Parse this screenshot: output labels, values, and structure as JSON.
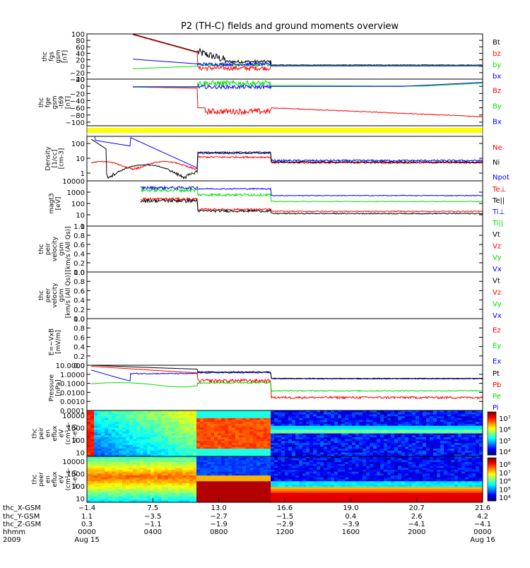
{
  "title": "P2 (TH-C) fields and ground moments overview",
  "colors": {
    "black": "#000000",
    "red": "#ff0000",
    "green": "#00dd00",
    "blue": "#0000ff",
    "yellow": "#ffff00"
  },
  "chart_data": [
    {
      "type": "line",
      "panel": "fgs",
      "ylabel": [
        "thc",
        "fgs",
        "gsm",
        "[nT]"
      ],
      "yticks": [
        "100",
        "80",
        "60",
        "40",
        "20",
        "0",
        "−20",
        "−40"
      ],
      "ylim": [
        -40,
        100
      ],
      "legend": [
        {
          "name": "Bt",
          "color": "black"
        },
        {
          "name": "bz",
          "color": "red"
        },
        {
          "name": "by",
          "color": "green"
        },
        {
          "name": "bx",
          "color": "blue"
        }
      ]
    },
    {
      "type": "line",
      "panel": "fge",
      "ylabel": [
        "thc",
        "fge",
        "gsm",
        "-t69",
        "[nT]"
      ],
      "yticks": [
        "20",
        "0",
        "−20",
        "−40",
        "−60",
        "−80",
        "−100"
      ],
      "ylim": [
        -110,
        20
      ],
      "legend": [
        {
          "name": "Bz",
          "color": "red"
        },
        {
          "name": "By",
          "color": "green"
        },
        {
          "name": "Bx",
          "color": "blue"
        }
      ]
    },
    {
      "type": "line",
      "panel": "density",
      "ylabel": [
        "Density",
        "[1/cc]",
        "[cm-3]"
      ],
      "yticks": [
        "100",
        "10",
        "1"
      ],
      "ylim": [
        0.3,
        300
      ],
      "scale": "log",
      "legend": [
        {
          "name": "Ne",
          "color": "red"
        },
        {
          "name": "Ni",
          "color": "black"
        },
        {
          "name": "Npot",
          "color": "blue"
        }
      ]
    },
    {
      "type": "line",
      "panel": "temperature",
      "ylabel": [
        "magt3",
        "[eV]"
      ],
      "yticks": [
        "10000",
        "1000",
        "100",
        "10",
        "1"
      ],
      "ylim": [
        1,
        10000
      ],
      "scale": "log",
      "legend": [
        {
          "name": "Te⊥",
          "color": "red"
        },
        {
          "name": "Te||",
          "color": "black"
        },
        {
          "name": "Ti⊥",
          "color": "blue"
        },
        {
          "name": "Ti||",
          "color": "green"
        }
      ]
    },
    {
      "type": "line",
      "panel": "peir_velocity",
      "ylabel": [
        "thc",
        "peir",
        "velocity",
        "gsm",
        "[km/s (All Qs)]"
      ],
      "yticks": [
        "1.0",
        "0.8",
        "0.6",
        "0.4",
        "0.2",
        "0.0"
      ],
      "ylim": [
        0,
        1
      ],
      "legend": [
        {
          "name": "Vt",
          "color": "black"
        },
        {
          "name": "Vz",
          "color": "red"
        },
        {
          "name": "Vy",
          "color": "green"
        },
        {
          "name": "Vx",
          "color": "blue"
        }
      ]
    },
    {
      "type": "line",
      "panel": "peer_velocity",
      "ylabel": [
        "thc",
        "peer",
        "velocity",
        "gsm",
        "[km/s (All Qs)]"
      ],
      "yticks": [
        "1.0",
        "0.8",
        "0.6",
        "0.4",
        "0.2",
        "0.0"
      ],
      "ylim": [
        0,
        1
      ],
      "legend": [
        {
          "name": "Vt",
          "color": "black"
        },
        {
          "name": "Vz",
          "color": "red"
        },
        {
          "name": "Vy",
          "color": "green"
        },
        {
          "name": "Vx",
          "color": "blue"
        }
      ]
    },
    {
      "type": "line",
      "panel": "efield",
      "ylabel": [
        "E=−VxB",
        "[mV/m]"
      ],
      "yticks": [
        "1.0",
        "0.8",
        "0.6",
        "0.4",
        "0.2",
        "0.0"
      ],
      "ylim": [
        0,
        1
      ],
      "legend": [
        {
          "name": "Ez",
          "color": "red"
        },
        {
          "name": "Ey",
          "color": "green"
        },
        {
          "name": "Ex",
          "color": "blue"
        }
      ]
    },
    {
      "type": "line",
      "panel": "pressure",
      "ylabel": [
        "Pressure",
        "[nPa]"
      ],
      "yticks": [
        "10.0000",
        "1.0000",
        "0.1000",
        "0.0100",
        "0.0010",
        "0.0001"
      ],
      "ylim": [
        0.0001,
        10
      ],
      "scale": "log",
      "legend": [
        {
          "name": "Pt",
          "color": "black"
        },
        {
          "name": "Pb",
          "color": "red"
        },
        {
          "name": "Pe",
          "color": "green"
        },
        {
          "name": "Pi",
          "color": "blue"
        }
      ]
    },
    {
      "type": "heatmap",
      "panel": "peir_spectrogram",
      "ylabel": [
        "thc",
        "peir",
        "en",
        "eflux",
        "eV",
        "(cm²-s-",
        "sr-eV)"
      ],
      "yticks": [
        "10000",
        "1000",
        "100",
        "10"
      ],
      "ylim": [
        5,
        25000
      ],
      "scale": "log",
      "colorbar_ticks": [
        "10⁷",
        "10⁶",
        "10⁵",
        "10⁴"
      ]
    },
    {
      "type": "heatmap",
      "panel": "peer_spectrogram",
      "ylabel": [
        "thc",
        "peer",
        "en",
        "eflux",
        "eV",
        "(cm²-s-",
        "sr-eV)"
      ],
      "yticks": [
        "10000",
        "1000",
        "100",
        "10"
      ],
      "ylim": [
        5,
        25000
      ],
      "scale": "log",
      "colorbar_ticks": [
        "10⁸",
        "10⁷",
        "10⁶",
        "10⁵",
        "10⁴"
      ]
    }
  ],
  "xaxis": {
    "row_labels": [
      "thc_X-GSM",
      "thc_Y-GSM",
      "thc_Z-GSM",
      "hhmm",
      "2009"
    ],
    "columns": [
      [
        "−1.4",
        "1.1",
        "0.3",
        "0000",
        "Aug 15"
      ],
      [
        "7.5",
        "−3.5",
        "−1.1",
        "0400",
        ""
      ],
      [
        "13.0",
        "−2.7",
        "−1.9",
        "0800",
        ""
      ],
      [
        "16.6",
        "−1.5",
        "−2.9",
        "1200",
        ""
      ],
      [
        "19.0",
        "0.4",
        "−3.9",
        "1600",
        ""
      ],
      [
        "20.7",
        "2.6",
        "−4.1",
        "2000",
        ""
      ],
      [
        "21.6",
        "4.2",
        "−4.1",
        "0000",
        "Aug 16"
      ]
    ]
  }
}
